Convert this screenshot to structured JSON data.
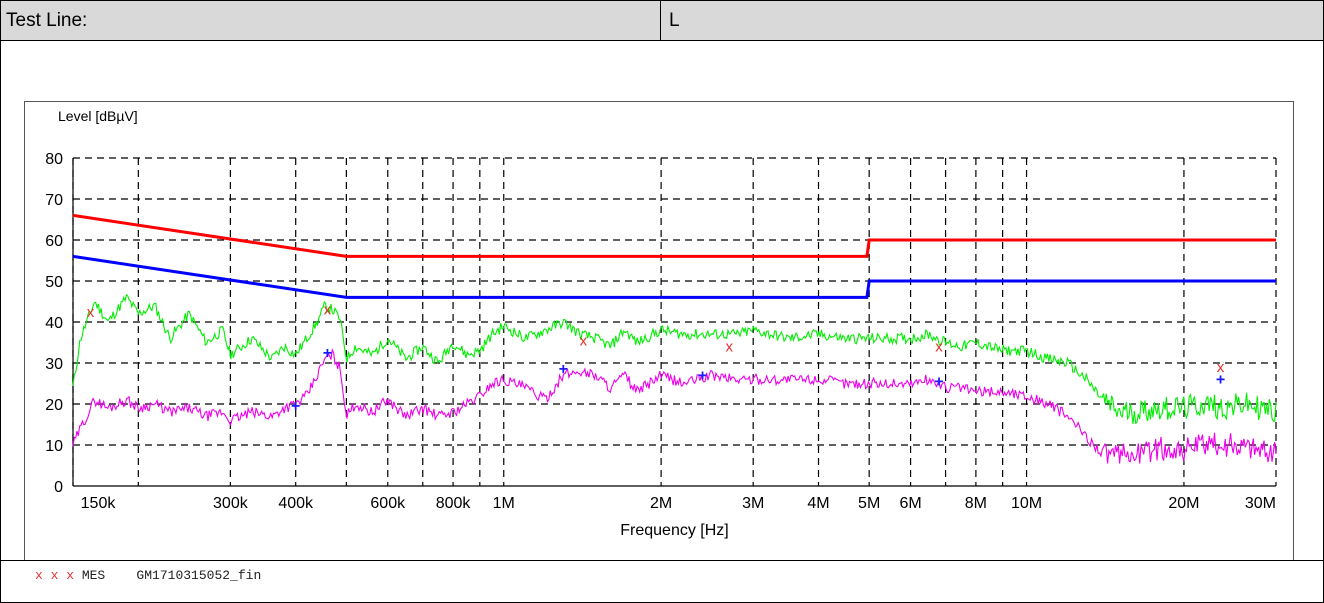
{
  "header": {
    "label": "Test Line:",
    "value": "L"
  },
  "legend": {
    "markers": "x x x",
    "text": "MES    GM1710315052_fin"
  },
  "colors": {
    "qp_limit": "#ff0000",
    "av_limit": "#0000ff",
    "peak_scan": "#00ee00",
    "avg_scan": "#ee00ee",
    "mark_x": "#e53030",
    "mark_plus": "#1a1aff"
  },
  "chart_data": {
    "type": "line",
    "title": "",
    "ylabel": "Level [dBµV]",
    "xlabel": "Frequency [Hz]",
    "xscale": "log",
    "xlim": [
      150000,
      30000000
    ],
    "ylim": [
      0,
      80
    ],
    "yticks": [
      0,
      10,
      20,
      30,
      40,
      50,
      60,
      70,
      80
    ],
    "xticks": [
      {
        "v": 150000,
        "label": "150k"
      },
      {
        "v": 300000,
        "label": "300k"
      },
      {
        "v": 400000,
        "label": "400k"
      },
      {
        "v": 600000,
        "label": "600k"
      },
      {
        "v": 800000,
        "label": "800k"
      },
      {
        "v": 1000000,
        "label": "1M"
      },
      {
        "v": 2000000,
        "label": "2M"
      },
      {
        "v": 3000000,
        "label": "3M"
      },
      {
        "v": 4000000,
        "label": "4M"
      },
      {
        "v": 5000000,
        "label": "5M"
      },
      {
        "v": 6000000,
        "label": "6M"
      },
      {
        "v": 8000000,
        "label": "8M"
      },
      {
        "v": 10000000,
        "label": "10M"
      },
      {
        "v": 20000000,
        "label": "20M"
      },
      {
        "v": 30000000,
        "label": "30M"
      }
    ],
    "xgrid": [
      150000,
      200000,
      300000,
      400000,
      500000,
      600000,
      700000,
      800000,
      900000,
      1000000,
      2000000,
      3000000,
      4000000,
      5000000,
      6000000,
      7000000,
      8000000,
      9000000,
      10000000,
      20000000,
      30000000
    ],
    "grid": true,
    "series": [
      {
        "key": "qp_limit",
        "x": [
          150000,
          500000,
          500000,
          4950000,
          5000000,
          30000000
        ],
        "y": [
          66,
          56,
          56,
          56,
          60,
          60
        ]
      },
      {
        "key": "av_limit",
        "x": [
          150000,
          500000,
          500000,
          4950000,
          5000000,
          30000000
        ],
        "y": [
          56,
          46,
          46,
          46,
          50,
          50
        ]
      },
      {
        "key": "peak_scan",
        "x": [
          150000,
          155000,
          165000,
          175000,
          190000,
          200000,
          215000,
          230000,
          250000,
          270000,
          290000,
          300000,
          330000,
          360000,
          380000,
          400000,
          420000,
          440000,
          455000,
          470000,
          485000,
          495000,
          500000,
          520000,
          560000,
          600000,
          650000,
          700000,
          750000,
          800000,
          850000,
          900000,
          950000,
          1000000,
          1100000,
          1200000,
          1300000,
          1400000,
          1500000,
          1600000,
          1700000,
          1800000,
          2000000,
          2200000,
          2500000,
          2800000,
          3000000,
          3500000,
          4000000,
          4500000,
          5000000,
          5500000,
          6000000,
          6500000,
          7000000,
          7500000,
          8000000,
          9000000,
          10000000,
          11000000,
          12000000,
          13000000,
          14000000,
          15000000,
          16000000,
          18000000,
          20000000,
          22000000,
          24000000,
          26000000,
          28000000,
          30000000
        ],
        "y": [
          24,
          36,
          45,
          40,
          46,
          42,
          44,
          36,
          42,
          35,
          38,
          32,
          36,
          31,
          34,
          32,
          36,
          40,
          44,
          43,
          41,
          35,
          31,
          34,
          32,
          36,
          31,
          34,
          30,
          35,
          32,
          33,
          37,
          39,
          36,
          38,
          40,
          37,
          36,
          34,
          38,
          35,
          38,
          37,
          37,
          37,
          38,
          36,
          37,
          36,
          36,
          36,
          36,
          37,
          35,
          34,
          35,
          33,
          33,
          31,
          30,
          26,
          21,
          18,
          18,
          19,
          19,
          20,
          19,
          20,
          19,
          18
        ]
      },
      {
        "key": "avg_scan",
        "x": [
          150000,
          155000,
          165000,
          175000,
          190000,
          200000,
          215000,
          230000,
          250000,
          270000,
          290000,
          300000,
          330000,
          360000,
          380000,
          400000,
          420000,
          440000,
          455000,
          470000,
          485000,
          495000,
          500000,
          520000,
          560000,
          600000,
          650000,
          700000,
          750000,
          800000,
          850000,
          900000,
          950000,
          1000000,
          1100000,
          1200000,
          1300000,
          1400000,
          1500000,
          1600000,
          1700000,
          1800000,
          2000000,
          2200000,
          2500000,
          2800000,
          3000000,
          3500000,
          4000000,
          4500000,
          5000000,
          5500000,
          6000000,
          6500000,
          7000000,
          7500000,
          8000000,
          9000000,
          10000000,
          11000000,
          12000000,
          13000000,
          14000000,
          15000000,
          16000000,
          18000000,
          20000000,
          22000000,
          24000000,
          26000000,
          28000000,
          30000000
        ],
        "y": [
          10,
          14,
          21,
          19,
          21,
          19,
          20,
          18,
          19,
          17,
          18,
          16,
          18,
          17,
          19,
          20,
          22,
          27,
          31,
          32,
          29,
          22,
          17,
          20,
          18,
          21,
          17,
          19,
          17,
          18,
          20,
          22,
          25,
          26,
          24,
          21,
          27,
          28,
          27,
          24,
          27,
          23,
          27,
          25,
          27,
          26,
          26,
          26,
          26,
          25,
          25,
          25,
          25,
          26,
          24,
          24,
          23,
          23,
          22,
          20,
          17,
          12,
          8,
          7,
          8,
          9,
          9,
          10,
          10,
          10,
          9,
          8
        ]
      }
    ],
    "markers_x": [
      {
        "x": 162000,
        "y": 42.5
      },
      {
        "x": 460000,
        "y": 43
      },
      {
        "x": 1420000,
        "y": 35.5
      },
      {
        "x": 2700000,
        "y": 34
      },
      {
        "x": 6800000,
        "y": 34
      },
      {
        "x": 23500000,
        "y": 29
      }
    ],
    "markers_plus": [
      {
        "x": 400000,
        "y": 19.5
      },
      {
        "x": 460000,
        "y": 32.5
      },
      {
        "x": 1300000,
        "y": 28.5
      },
      {
        "x": 2400000,
        "y": 27
      },
      {
        "x": 6800000,
        "y": 25.5
      },
      {
        "x": 23500000,
        "y": 26
      }
    ]
  }
}
